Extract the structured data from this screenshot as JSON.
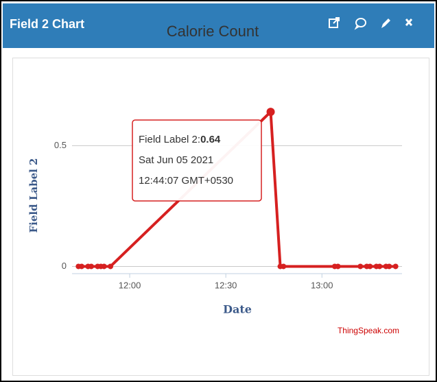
{
  "panel": {
    "title": "Field 2 Chart"
  },
  "chart_data": {
    "type": "line",
    "title": "Calorie Count",
    "x_label": "Date",
    "y_label": "Field Label 2",
    "x": [
      "11:44",
      "11:45",
      "11:47",
      "11:48",
      "11:50",
      "11:51",
      "11:52",
      "11:54",
      "12:44",
      "12:47",
      "12:48",
      "13:04",
      "13:05",
      "13:12",
      "13:14",
      "13:15",
      "13:17",
      "13:18",
      "13:20",
      "13:21",
      "13:23"
    ],
    "series": [
      {
        "name": "Field Label 2",
        "color": "#d62020",
        "values": [
          0,
          0,
          0,
          0,
          0,
          0,
          0,
          0,
          0.64,
          0,
          0,
          0,
          0,
          0,
          0,
          0,
          0,
          0,
          0,
          0,
          0
        ]
      }
    ],
    "xlim": [
      "11:42",
      "13:25"
    ],
    "xticks": [
      "12:00",
      "12:30",
      "13:00"
    ],
    "ylim": [
      -0.03,
      0.7
    ],
    "yticks": [
      0,
      0.5
    ],
    "grid": true,
    "tooltip": {
      "label": "Field Label 2:",
      "date": "Sat Jun 05 2021",
      "time": "12:44:07 GMT+0530"
    },
    "credit": "ThingSpeak.com"
  }
}
